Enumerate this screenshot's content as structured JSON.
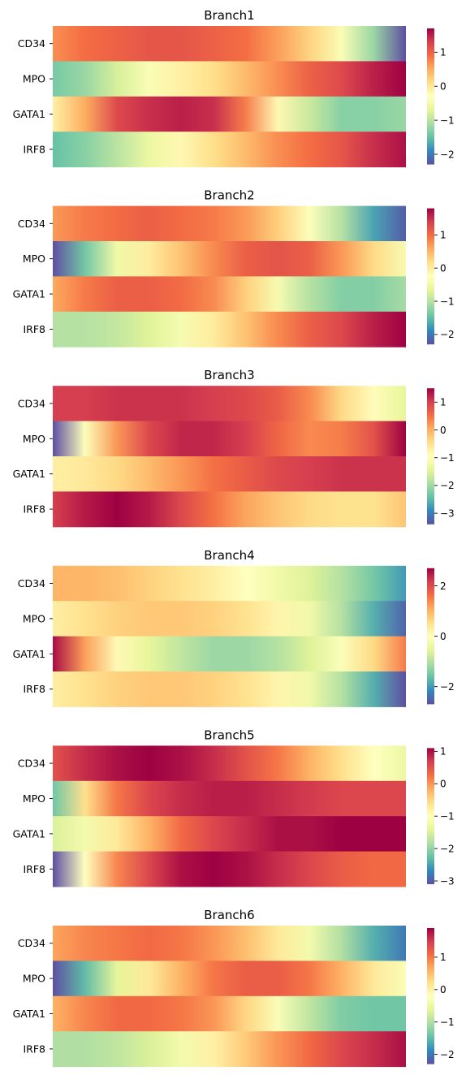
{
  "colormap": [
    "#5e4fa2",
    "#3288bd",
    "#66c2a5",
    "#abdda4",
    "#e6f598",
    "#ffffbf",
    "#fee08b",
    "#fdae61",
    "#f46d43",
    "#d53e4f",
    "#9e0142"
  ],
  "chart_data": [
    {
      "type": "heatmap",
      "title": "Branch1",
      "rows": [
        "CD34",
        "MPO",
        "GATA1",
        "IRF8"
      ],
      "colorbar": {
        "vmin": -2.3,
        "vmax": 1.7,
        "ticks": [
          1,
          0,
          -1,
          -2
        ],
        "tick_labels": [
          "1",
          "0",
          "−1",
          "−2"
        ]
      },
      "values": [
        [
          0.7,
          0.9,
          1.0,
          1.1,
          1.1,
          1.0,
          0.9,
          0.6,
          0.2,
          -0.4,
          -1.2,
          -2.3
        ],
        [
          -1.4,
          -1.2,
          -0.8,
          -0.4,
          -0.1,
          0.1,
          0.4,
          0.7,
          1.0,
          1.2,
          1.5,
          1.7
        ],
        [
          -0.1,
          0.5,
          1.2,
          1.4,
          1.5,
          1.4,
          0.8,
          -0.2,
          -0.9,
          -1.3,
          -1.3,
          -1.2
        ],
        [
          -1.5,
          -1.3,
          -1.0,
          -0.6,
          -0.2,
          0.1,
          0.4,
          0.7,
          0.9,
          1.1,
          1.4,
          1.6
        ]
      ]
    },
    {
      "type": "heatmap",
      "title": "Branch2",
      "rows": [
        "CD34",
        "MPO",
        "GATA1",
        "IRF8"
      ],
      "colorbar": {
        "vmin": -2.3,
        "vmax": 1.8,
        "ticks": [
          1,
          0,
          -1,
          -2
        ],
        "tick_labels": [
          "1",
          "0",
          "−1",
          "−2"
        ]
      },
      "values": [
        [
          0.7,
          0.9,
          1.0,
          1.1,
          1.0,
          0.9,
          0.7,
          0.3,
          -0.3,
          -1.0,
          -1.7,
          -2.2
        ],
        [
          -2.3,
          -1.4,
          -0.5,
          0.0,
          0.4,
          0.8,
          1.1,
          1.2,
          1.1,
          0.7,
          0.2,
          -0.4
        ],
        [
          0.6,
          0.9,
          1.1,
          1.1,
          1.0,
          0.8,
          0.3,
          -0.4,
          -1.0,
          -1.3,
          -1.3,
          -1.1
        ],
        [
          -1.0,
          -1.0,
          -0.9,
          -0.7,
          -0.4,
          0.0,
          0.4,
          0.8,
          1.1,
          1.3,
          1.6,
          1.8
        ]
      ]
    },
    {
      "type": "heatmap",
      "title": "Branch3",
      "rows": [
        "CD34",
        "MPO",
        "GATA1",
        "IRF8"
      ],
      "colorbar": {
        "vmin": -3.4,
        "vmax": 1.5,
        "ticks": [
          1,
          0,
          -1,
          -2,
          -3
        ],
        "tick_labels": [
          "1",
          "0",
          "−1",
          "−2",
          "−3"
        ]
      },
      "values": [
        [
          1.0,
          1.0,
          1.1,
          1.1,
          1.1,
          1.0,
          0.9,
          0.7,
          0.3,
          -0.4,
          -0.9,
          -1.4
        ],
        [
          -3.4,
          -1.0,
          0.2,
          0.9,
          1.2,
          1.2,
          1.0,
          0.6,
          0.3,
          0.4,
          0.8,
          1.5
        ],
        [
          -0.7,
          -0.6,
          -0.4,
          -0.1,
          0.2,
          0.5,
          0.7,
          0.9,
          1.0,
          1.1,
          1.1,
          1.1
        ],
        [
          1.0,
          1.3,
          1.5,
          1.3,
          0.9,
          0.5,
          0.1,
          -0.2,
          -0.4,
          -0.5,
          -0.5,
          -0.2
        ]
      ]
    },
    {
      "type": "heatmap",
      "title": "Branch4",
      "rows": [
        "CD34",
        "MPO",
        "GATA1",
        "IRF8"
      ],
      "colorbar": {
        "vmin": -2.7,
        "vmax": 2.7,
        "ticks": [
          2,
          0,
          -2
        ],
        "tick_labels": [
          "2",
          "0",
          "−2"
        ]
      },
      "values": [
        [
          1.0,
          1.0,
          0.9,
          0.7,
          0.5,
          0.3,
          0.0,
          -0.3,
          -0.6,
          -1.0,
          -1.5,
          -2.0
        ],
        [
          0.3,
          0.5,
          0.7,
          0.8,
          0.8,
          0.7,
          0.5,
          0.2,
          -0.3,
          -1.0,
          -1.8,
          -2.5
        ],
        [
          2.6,
          1.2,
          0.1,
          -0.5,
          -0.9,
          -1.2,
          -1.2,
          -1.0,
          -0.6,
          -0.1,
          0.6,
          1.5
        ],
        [
          0.3,
          0.5,
          0.7,
          0.8,
          0.8,
          0.7,
          0.5,
          0.2,
          -0.3,
          -1.0,
          -1.8,
          -2.7
        ]
      ]
    },
    {
      "type": "heatmap",
      "title": "Branch5",
      "rows": [
        "CD34",
        "MPO",
        "GATA1",
        "IRF8"
      ],
      "colorbar": {
        "vmin": -3.1,
        "vmax": 1.1,
        "ticks": [
          1,
          0,
          -1,
          -2,
          -3
        ],
        "tick_labels": [
          "1",
          "0",
          "−1",
          "−2",
          "−3"
        ]
      },
      "values": [
        [
          0.5,
          0.8,
          1.0,
          1.1,
          1.0,
          0.8,
          0.5,
          0.2,
          -0.2,
          -0.6,
          -1.0,
          -1.3
        ],
        [
          -2.2,
          -0.6,
          0.2,
          0.6,
          0.8,
          0.9,
          0.9,
          0.8,
          0.7,
          0.6,
          0.6,
          0.6
        ],
        [
          -1.5,
          -1.2,
          -0.7,
          -0.2,
          0.3,
          0.6,
          0.8,
          1.0,
          1.0,
          1.1,
          1.1,
          1.1
        ],
        [
          -3.1,
          -1.0,
          0.1,
          0.6,
          1.0,
          1.1,
          1.0,
          0.8,
          0.6,
          0.4,
          0.3,
          0.3
        ]
      ]
    },
    {
      "type": "heatmap",
      "title": "Branch6",
      "rows": [
        "CD34",
        "MPO",
        "GATA1",
        "IRF8"
      ],
      "colorbar": {
        "vmin": -2.3,
        "vmax": 1.9,
        "ticks": [
          1,
          0,
          -1,
          -2
        ],
        "tick_labels": [
          "1",
          "0",
          "−1",
          "−2"
        ]
      },
      "values": [
        [
          0.7,
          0.9,
          1.0,
          1.1,
          1.0,
          0.8,
          0.5,
          0.1,
          -0.4,
          -1.0,
          -1.6,
          -2.0
        ],
        [
          -2.3,
          -1.5,
          -0.6,
          0.1,
          0.6,
          1.0,
          1.2,
          1.2,
          1.0,
          0.6,
          0.1,
          -0.3
        ],
        [
          0.6,
          0.9,
          1.1,
          1.1,
          1.0,
          0.8,
          0.3,
          -0.3,
          -0.9,
          -1.3,
          -1.4,
          -1.4
        ],
        [
          -1.0,
          -1.0,
          -0.9,
          -0.7,
          -0.4,
          0.0,
          0.4,
          0.8,
          1.1,
          1.4,
          1.6,
          1.8
        ]
      ]
    }
  ]
}
